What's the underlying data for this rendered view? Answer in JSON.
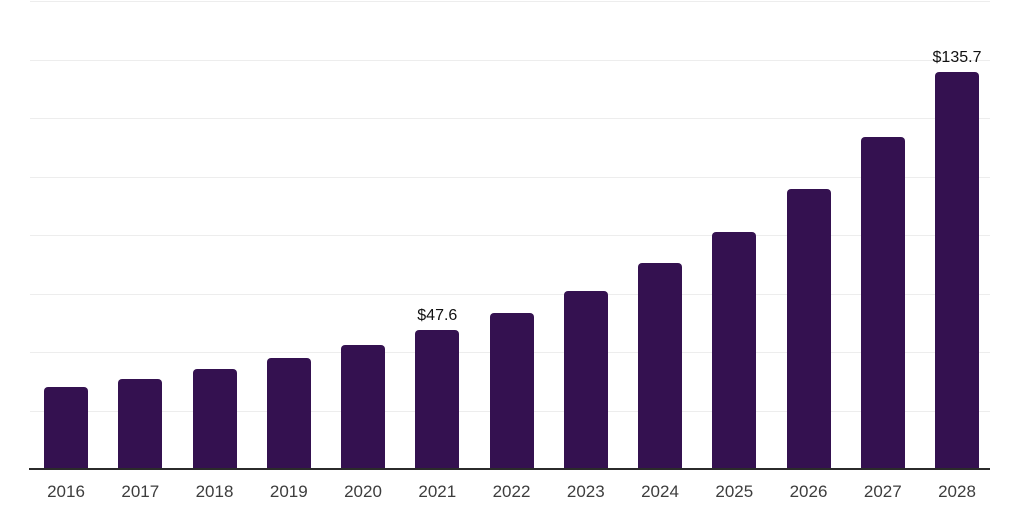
{
  "chart": {
    "colors": {
      "bar": "#341150",
      "gridline": "#ededed",
      "axis_line": "#2b2b2b",
      "tick_label": "#3d3d3d",
      "data_label": "#111111",
      "background": "#ffffff"
    }
  },
  "chart_data": {
    "type": "bar",
    "categories": [
      "2016",
      "2017",
      "2018",
      "2019",
      "2020",
      "2021",
      "2022",
      "2023",
      "2024",
      "2025",
      "2026",
      "2027",
      "2028"
    ],
    "values": [
      28.0,
      30.8,
      34.1,
      37.9,
      42.4,
      47.6,
      53.5,
      61.0,
      70.3,
      81.1,
      95.7,
      113.6,
      135.7
    ],
    "data_labels": [
      "",
      "",
      "",
      "",
      "",
      "$47.6",
      "",
      "",
      "",
      "",
      "",
      "",
      "$135.7"
    ],
    "xlabel": "",
    "ylabel": "",
    "ylim": [
      0,
      160
    ],
    "grid_step": 20,
    "grid": "horizontal",
    "legend": "none",
    "value_prefix": "$"
  }
}
